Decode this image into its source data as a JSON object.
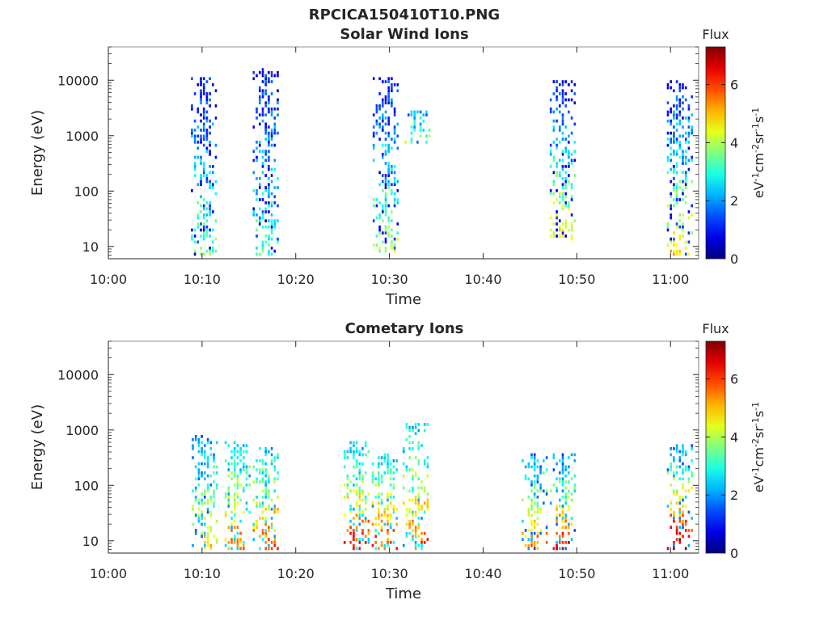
{
  "figure": {
    "title": "RPCICA150410T10.PNG"
  },
  "chart_data": [
    {
      "type": "heatmap",
      "title": "Solar Wind Ions",
      "xlabel": "Time",
      "ylabel": "Energy (eV)",
      "yscale": "log",
      "xlim": [
        "10:00",
        "11:03"
      ],
      "ylim": [
        6,
        40000
      ],
      "x_ticks": [
        "10:00",
        "10:10",
        "10:20",
        "10:30",
        "10:40",
        "10:50",
        "11:00"
      ],
      "y_ticks": [
        "10",
        "100",
        "1000",
        "10000"
      ],
      "colorbar": {
        "title": "Flux",
        "label": "eV-1cm-2sr-1s-1",
        "range": [
          0,
          7.3
        ],
        "ticks": [
          "0",
          "2",
          "4",
          "6"
        ],
        "colormap": "jet"
      },
      "bursts": [
        {
          "time_min": 10.2,
          "e_low": 7,
          "e_high": 9000,
          "flux_low": 1.0,
          "flux_high": 3.5
        },
        {
          "time_min": 16.8,
          "e_low": 7,
          "e_high": 14000,
          "flux_low": 1.0,
          "flux_high": 3.2
        },
        {
          "time_min": 29.6,
          "e_low": 8,
          "e_high": 9000,
          "flux_low": 1.0,
          "flux_high": 3.8
        },
        {
          "time_min": 33.0,
          "e_low": 800,
          "e_high": 2500,
          "flux_low": 2.0,
          "flux_high": 3.5
        },
        {
          "time_min": 48.5,
          "e_low": 14,
          "e_high": 8000,
          "flux_low": 1.0,
          "flux_high": 4.6
        },
        {
          "time_min": 61.0,
          "e_low": 7,
          "e_high": 8000,
          "flux_low": 1.0,
          "flux_high": 4.8
        }
      ]
    },
    {
      "type": "heatmap",
      "title": "Cometary Ions",
      "xlabel": "Time",
      "ylabel": "Energy (eV)",
      "yscale": "log",
      "xlim": [
        "10:00",
        "11:03"
      ],
      "ylim": [
        6,
        40000
      ],
      "x_ticks": [
        "10:00",
        "10:10",
        "10:20",
        "10:30",
        "10:40",
        "10:50",
        "11:00"
      ],
      "y_ticks": [
        "10",
        "100",
        "1000",
        "10000"
      ],
      "colorbar": {
        "title": "Flux",
        "label": "eV-1cm-2sr-1s-1",
        "range": [
          0,
          7.3
        ],
        "ticks": [
          "0",
          "2",
          "4",
          "6"
        ],
        "colormap": "jet"
      },
      "bursts": [
        {
          "time_min": 10.3,
          "e_low": 7,
          "e_high": 700,
          "flux_low": 2.0,
          "flux_high": 4.8
        },
        {
          "time_min": 13.8,
          "e_low": 7,
          "e_high": 500,
          "flux_low": 2.5,
          "flux_high": 5.5
        },
        {
          "time_min": 16.8,
          "e_low": 7,
          "e_high": 400,
          "flux_low": 2.5,
          "flux_high": 5.8
        },
        {
          "time_min": 26.5,
          "e_low": 7,
          "e_high": 500,
          "flux_low": 2.5,
          "flux_high": 6.2
        },
        {
          "time_min": 29.5,
          "e_low": 7,
          "e_high": 300,
          "flux_low": 2.5,
          "flux_high": 6.0
        },
        {
          "time_min": 32.8,
          "e_low": 7,
          "e_high": 1100,
          "flux_low": 2.5,
          "flux_high": 5.8
        },
        {
          "time_min": 45.5,
          "e_low": 7,
          "e_high": 300,
          "flux_low": 2.0,
          "flux_high": 5.6
        },
        {
          "time_min": 48.5,
          "e_low": 7,
          "e_high": 300,
          "flux_low": 2.0,
          "flux_high": 6.6
        },
        {
          "time_min": 61.0,
          "e_low": 7,
          "e_high": 450,
          "flux_low": 2.0,
          "flux_high": 7.0
        }
      ]
    }
  ]
}
